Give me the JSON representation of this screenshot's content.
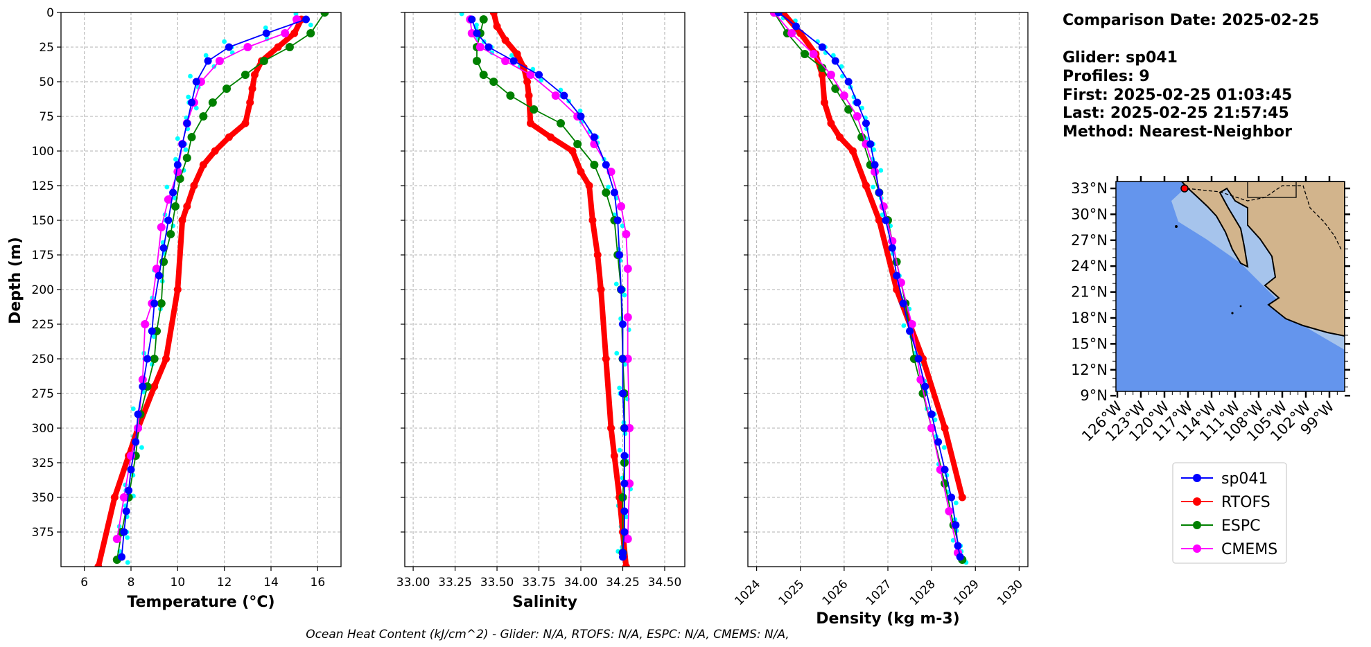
{
  "chart_data": [
    {
      "type": "line",
      "xlabel": "Temperature (°C)",
      "ylabel": "Depth (m)",
      "xlim": [
        5,
        17
      ],
      "ylim": [
        400,
        0
      ],
      "y_inverted": true,
      "grid": true,
      "xticks": [
        6,
        8,
        10,
        12,
        14,
        16
      ],
      "yticks": [
        0,
        25,
        50,
        75,
        100,
        125,
        150,
        175,
        200,
        225,
        250,
        275,
        300,
        325,
        350,
        375
      ],
      "series": [
        {
          "name": "sp041",
          "color": "#0000ff",
          "x": [
            15.5,
            13.8,
            12.2,
            11.3,
            10.8,
            10.6,
            10.4,
            10.2,
            10.0,
            9.8,
            9.6,
            9.4,
            9.2,
            9.0,
            8.9,
            8.7,
            8.5,
            8.3,
            8.2,
            8.0,
            7.9,
            7.8,
            7.7,
            7.6
          ],
          "y": [
            5,
            15,
            25,
            35,
            50,
            65,
            80,
            95,
            110,
            130,
            150,
            170,
            190,
            210,
            230,
            250,
            270,
            290,
            310,
            330,
            345,
            360,
            375,
            393
          ]
        },
        {
          "name": "RTOFS",
          "color": "#ff0000",
          "x": [
            15.3,
            15.0,
            14.3,
            13.6,
            13.3,
            13.2,
            13.1,
            12.9,
            12.2,
            11.6,
            11.1,
            10.7,
            10.4,
            10.2,
            10.0,
            9.5,
            9.0,
            8.3,
            7.9,
            7.3,
            6.6
          ],
          "y": [
            5,
            15,
            25,
            35,
            45,
            55,
            65,
            80,
            90,
            100,
            110,
            125,
            140,
            150,
            200,
            250,
            270,
            300,
            320,
            350,
            400
          ]
        },
        {
          "name": "ESPC",
          "color": "#008000",
          "x": [
            16.3,
            15.7,
            14.8,
            13.7,
            12.9,
            12.1,
            11.5,
            11.1,
            10.6,
            10.4,
            10.1,
            9.9,
            9.7,
            9.4,
            9.3,
            9.1,
            9.0,
            8.7,
            8.4,
            8.2,
            7.9,
            7.6,
            7.4
          ],
          "y": [
            0,
            15,
            25,
            35,
            45,
            55,
            65,
            75,
            90,
            105,
            120,
            140,
            160,
            180,
            210,
            230,
            250,
            270,
            290,
            320,
            350,
            375,
            395
          ]
        },
        {
          "name": "CMEMS",
          "color": "#ff00ff",
          "x": [
            15.1,
            14.6,
            13.0,
            11.8,
            11.0,
            10.7,
            10.4,
            10.2,
            10.0,
            9.6,
            9.3,
            9.1,
            8.9,
            8.6,
            8.5,
            8.3,
            8.0,
            7.7,
            7.4
          ],
          "y": [
            5,
            15,
            25,
            35,
            50,
            65,
            80,
            95,
            115,
            135,
            155,
            185,
            210,
            225,
            265,
            300,
            320,
            350,
            380
          ]
        }
      ]
    },
    {
      "type": "line",
      "xlabel": "Salinity",
      "xlim": [
        32.95,
        34.62
      ],
      "ylim": [
        400,
        0
      ],
      "y_inverted": true,
      "grid": true,
      "xticks": [
        "33.00",
        "33.25",
        "33.50",
        "33.75",
        "34.00",
        "34.25",
        "34.50"
      ],
      "series": [
        {
          "name": "sp041",
          "color": "#0000ff",
          "x": [
            33.35,
            33.38,
            33.45,
            33.6,
            33.75,
            33.9,
            34.0,
            34.08,
            34.15,
            34.2,
            34.22,
            34.23,
            34.24,
            34.25,
            34.25,
            34.25,
            34.26,
            34.26,
            34.26,
            34.26,
            34.26,
            34.25,
            34.25
          ],
          "y": [
            5,
            15,
            25,
            35,
            45,
            60,
            75,
            90,
            110,
            130,
            150,
            175,
            200,
            225,
            250,
            275,
            300,
            320,
            340,
            360,
            375,
            390,
            393
          ]
        },
        {
          "name": "RTOFS",
          "color": "#ff0000",
          "x": [
            33.48,
            33.5,
            33.55,
            33.62,
            33.66,
            33.68,
            33.69,
            33.7,
            33.82,
            33.95,
            34.0,
            34.05,
            34.07,
            34.1,
            34.12,
            34.15,
            34.18,
            34.2,
            34.23,
            34.25,
            34.27
          ],
          "y": [
            0,
            10,
            20,
            30,
            40,
            50,
            60,
            80,
            90,
            100,
            115,
            125,
            150,
            175,
            200,
            250,
            300,
            320,
            350,
            375,
            400
          ]
        },
        {
          "name": "ESPC",
          "color": "#008000",
          "x": [
            33.42,
            33.4,
            33.38,
            33.38,
            33.42,
            33.48,
            33.58,
            33.72,
            33.88,
            33.98,
            34.08,
            34.15,
            34.2,
            34.22,
            34.24,
            34.25,
            34.26,
            34.26,
            34.26,
            34.25,
            34.25
          ],
          "y": [
            5,
            15,
            25,
            35,
            45,
            50,
            60,
            70,
            80,
            95,
            110,
            130,
            150,
            175,
            200,
            250,
            275,
            300,
            325,
            350,
            390
          ]
        },
        {
          "name": "CMEMS",
          "color": "#ff00ff",
          "x": [
            33.34,
            33.35,
            33.4,
            33.55,
            33.7,
            33.85,
            33.98,
            34.08,
            34.18,
            34.24,
            34.27,
            34.28,
            34.28,
            34.28,
            34.29,
            34.29,
            34.28
          ],
          "y": [
            5,
            15,
            25,
            35,
            45,
            60,
            75,
            95,
            115,
            140,
            160,
            185,
            220,
            250,
            300,
            340,
            380
          ]
        }
      ]
    },
    {
      "type": "line",
      "xlabel": "Density (kg m-3)",
      "xlim": [
        1023.8,
        1030.2
      ],
      "ylim": [
        400,
        0
      ],
      "y_inverted": true,
      "grid": true,
      "xticks": [
        1024,
        1025,
        1026,
        1027,
        1028,
        1029,
        1030
      ],
      "series": [
        {
          "name": "sp041",
          "color": "#0000ff",
          "x": [
            1024.5,
            1024.9,
            1025.5,
            1025.8,
            1026.1,
            1026.3,
            1026.5,
            1026.6,
            1026.7,
            1026.8,
            1026.95,
            1027.1,
            1027.2,
            1027.35,
            1027.5,
            1027.7,
            1027.85,
            1028.0,
            1028.15,
            1028.3,
            1028.45,
            1028.55,
            1028.6,
            1028.65
          ],
          "y": [
            0,
            10,
            25,
            35,
            50,
            65,
            80,
            95,
            110,
            130,
            150,
            170,
            190,
            210,
            230,
            250,
            270,
            290,
            310,
            330,
            350,
            370,
            385,
            393
          ]
        },
        {
          "name": "RTOFS",
          "color": "#ff0000",
          "x": [
            1024.6,
            1025.0,
            1025.35,
            1025.5,
            1025.55,
            1025.7,
            1025.9,
            1026.2,
            1026.5,
            1026.8,
            1027.2,
            1027.8,
            1028.3,
            1028.7
          ],
          "y": [
            0,
            15,
            30,
            45,
            65,
            80,
            90,
            100,
            125,
            150,
            200,
            250,
            300,
            350
          ]
        },
        {
          "name": "ESPC",
          "color": "#008000",
          "x": [
            1024.4,
            1024.7,
            1025.1,
            1025.5,
            1025.8,
            1026.1,
            1026.4,
            1026.6,
            1026.8,
            1027.0,
            1027.2,
            1027.4,
            1027.6,
            1027.8,
            1028.0,
            1028.3,
            1028.5,
            1028.7
          ],
          "y": [
            0,
            15,
            30,
            40,
            55,
            70,
            90,
            110,
            130,
            150,
            180,
            210,
            250,
            275,
            300,
            340,
            370,
            395
          ]
        },
        {
          "name": "CMEMS",
          "color": "#ff00ff",
          "x": [
            1024.4,
            1024.8,
            1025.3,
            1025.7,
            1026.0,
            1026.3,
            1026.5,
            1026.7,
            1026.9,
            1027.1,
            1027.3,
            1027.55,
            1027.75,
            1028.0,
            1028.2,
            1028.4,
            1028.6
          ],
          "y": [
            0,
            15,
            30,
            45,
            60,
            75,
            95,
            115,
            140,
            165,
            195,
            225,
            265,
            300,
            330,
            360,
            390
          ]
        }
      ]
    }
  ],
  "glider_cyan_color": "#00ffff",
  "info": {
    "line1": "Comparison Date: 2025-02-25",
    "line2": "Glider: sp041",
    "line3": "Profiles: 9",
    "line4": "First: 2025-02-25 01:03:45",
    "line5": "Last: 2025-02-25 21:57:45",
    "line6": "Method: Nearest-Neighbor"
  },
  "map": {
    "lat_ticks": [
      "33°N",
      "30°N",
      "27°N",
      "24°N",
      "21°N",
      "18°N",
      "15°N",
      "12°N",
      "9°N"
    ],
    "lon_ticks": [
      "126°W",
      "123°W",
      "120°W",
      "117°W",
      "114°W",
      "111°W",
      "108°W",
      "105°W",
      "102°W",
      "99°W"
    ],
    "ocean_color": "#6495ed",
    "shelf_color": "#a6c4ec",
    "land_color": "#d2b48c",
    "marker_color": "#ff0000"
  },
  "legend": [
    {
      "label": "sp041",
      "color": "#0000ff"
    },
    {
      "label": "RTOFS",
      "color": "#ff0000"
    },
    {
      "label": "ESPC",
      "color": "#008000"
    },
    {
      "label": "CMEMS",
      "color": "#ff00ff"
    }
  ],
  "footer": "Ocean Heat Content (kJ/cm^2) - Glider: N/A,  RTOFS: N/A,  ESPC: N/A,  CMEMS: N/A,"
}
